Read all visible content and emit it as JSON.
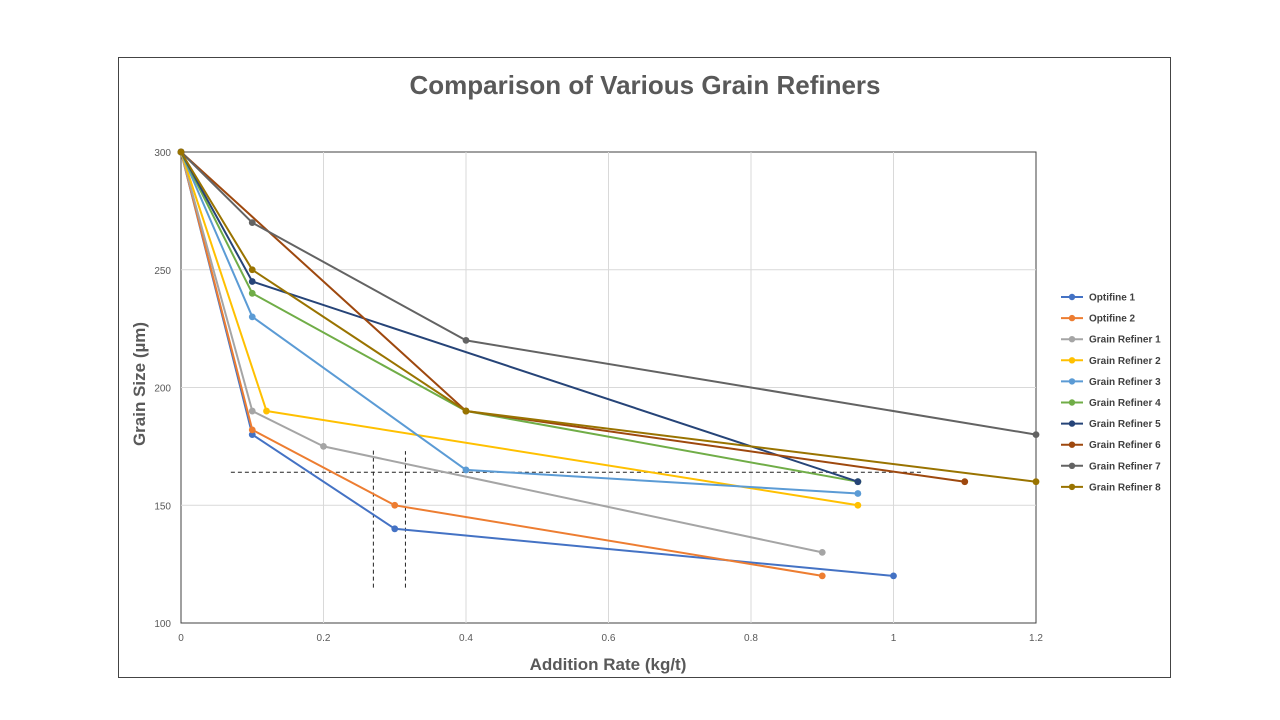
{
  "chart_data": {
    "type": "line",
    "title": "Comparison of Various Grain Refiners",
    "xlabel": "Addition Rate (kg/t)",
    "ylabel": "Grain Size (µm)",
    "xlim": [
      0,
      1.2
    ],
    "ylim": [
      100,
      300
    ],
    "xticks": [
      "0",
      "0.2",
      "0.4",
      "0.6",
      "0.8",
      "1",
      "1.2"
    ],
    "yticks": [
      "100",
      "150",
      "200",
      "250",
      "300"
    ],
    "grid": true,
    "legend_position": "right",
    "series": [
      {
        "name": "Optifine 1",
        "color": "#4472C4",
        "points": [
          [
            0,
            300
          ],
          [
            0.1,
            180
          ],
          [
            0.3,
            140
          ],
          [
            1.0,
            120
          ]
        ]
      },
      {
        "name": "Optifine 2",
        "color": "#ED7D31",
        "points": [
          [
            0,
            300
          ],
          [
            0.1,
            182
          ],
          [
            0.3,
            150
          ],
          [
            0.9,
            120
          ]
        ]
      },
      {
        "name": "Grain Refiner 1",
        "color": "#A5A5A5",
        "points": [
          [
            0,
            300
          ],
          [
            0.1,
            190
          ],
          [
            0.2,
            175
          ],
          [
            0.9,
            130
          ]
        ]
      },
      {
        "name": "Grain Refiner 2",
        "color": "#FFC000",
        "points": [
          [
            0,
            300
          ],
          [
            0.12,
            190
          ],
          [
            0.95,
            150
          ]
        ]
      },
      {
        "name": "Grain Refiner 3",
        "color": "#5B9BD5",
        "points": [
          [
            0,
            300
          ],
          [
            0.1,
            230
          ],
          [
            0.4,
            165
          ],
          [
            0.95,
            155
          ]
        ]
      },
      {
        "name": "Grain Refiner 4",
        "color": "#70AD47",
        "points": [
          [
            0,
            300
          ],
          [
            0.1,
            240
          ],
          [
            0.4,
            190
          ],
          [
            0.95,
            160
          ]
        ]
      },
      {
        "name": "Grain Refiner 5",
        "color": "#264478",
        "points": [
          [
            0,
            300
          ],
          [
            0.1,
            245
          ],
          [
            0.95,
            160
          ]
        ]
      },
      {
        "name": "Grain Refiner 6",
        "color": "#9E480E",
        "points": [
          [
            0,
            300
          ],
          [
            0.4,
            190
          ],
          [
            1.1,
            160
          ]
        ]
      },
      {
        "name": "Grain Refiner 7",
        "color": "#636363",
        "points": [
          [
            0,
            300
          ],
          [
            0.1,
            270
          ],
          [
            0.4,
            220
          ],
          [
            1.2,
            180
          ]
        ]
      },
      {
        "name": "Grain Refiner 8",
        "color": "#997300",
        "points": [
          [
            0,
            300
          ],
          [
            0.1,
            250
          ],
          [
            0.4,
            190
          ],
          [
            1.2,
            160
          ]
        ]
      }
    ],
    "reference_lines": [
      {
        "orientation": "horizontal",
        "y": 164,
        "x_range": [
          0.07,
          1.04
        ]
      },
      {
        "orientation": "vertical",
        "x": 0.27,
        "y_range": [
          115,
          174
        ]
      },
      {
        "orientation": "vertical",
        "x": 0.315,
        "y_range": [
          115,
          173
        ]
      }
    ]
  }
}
